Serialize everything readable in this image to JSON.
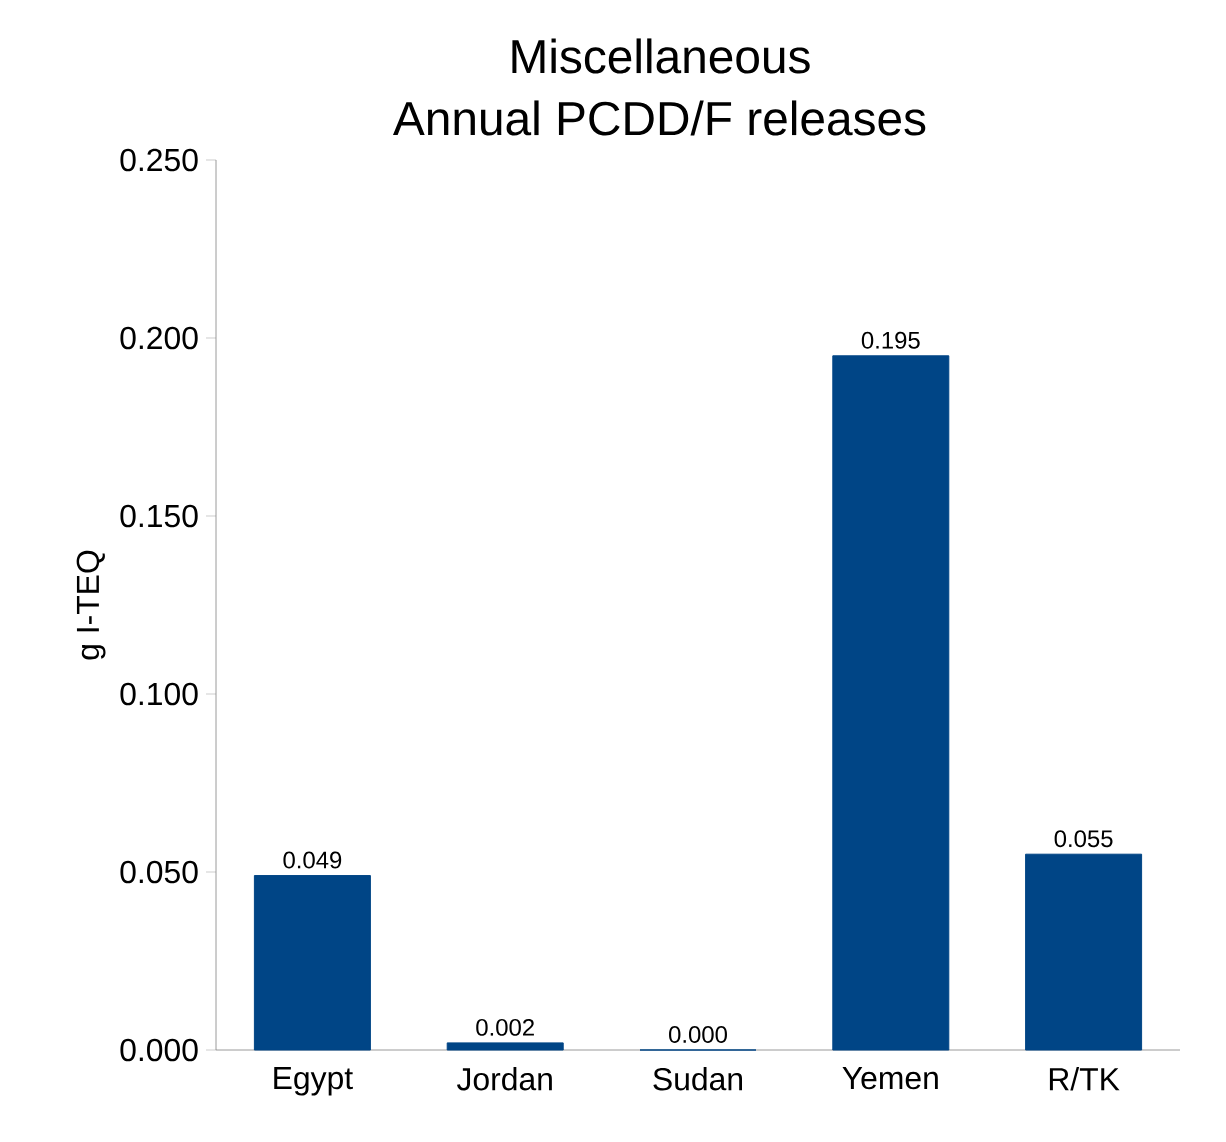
{
  "chart_data": {
    "type": "bar",
    "title": "Miscellaneous",
    "subtitle": "Annual PCDD/F releases",
    "ylabel": "g I-TEQ",
    "categories": [
      "Egypt",
      "Jordan",
      "Sudan",
      "Yemen",
      "R/TK"
    ],
    "values": [
      0.049,
      0.002,
      0.0,
      0.195,
      0.055
    ],
    "value_labels": [
      "0.049",
      "0.002",
      "0.000",
      "0.195",
      "0.055"
    ],
    "color": "#004586",
    "ylim": [
      0,
      0.25
    ],
    "yticks": [
      {
        "value": 0,
        "label": "0.000"
      },
      {
        "value": 0.05,
        "label": "0.050"
      },
      {
        "value": 0.1,
        "label": "0.100"
      },
      {
        "value": 0.15,
        "label": "0.150"
      },
      {
        "value": 0.2,
        "label": "0.200"
      },
      {
        "value": 0.25,
        "label": "0.250"
      }
    ],
    "grid": false
  }
}
